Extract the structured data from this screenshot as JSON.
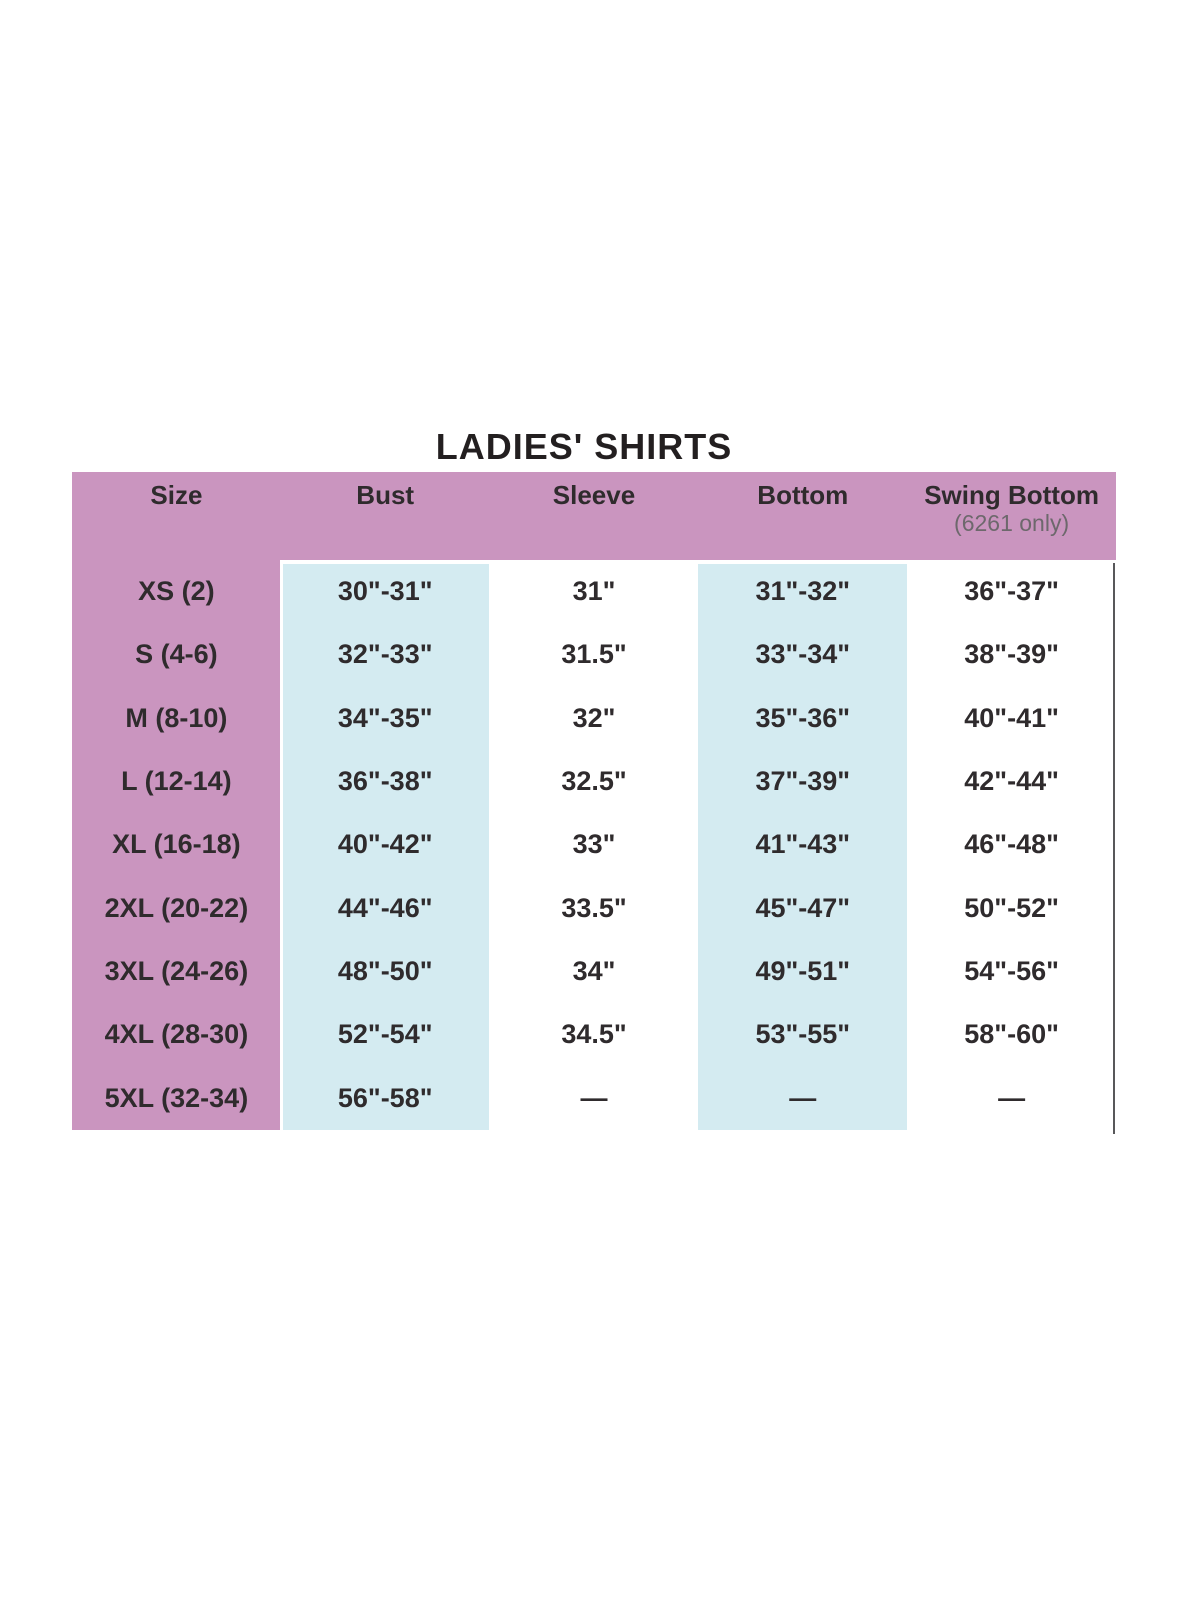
{
  "title": "LADIES' SHIRTS",
  "chart_data": {
    "type": "table",
    "title": "LADIES' SHIRTS",
    "columns": [
      "Size",
      "Bust",
      "Sleeve",
      "Bottom",
      "Swing Bottom"
    ],
    "swing_bottom_note": "(6261 only)",
    "fields": [
      "size",
      "bust",
      "sleeve",
      "bottom",
      "swing_bottom"
    ],
    "rows": [
      {
        "size": "XS (2)",
        "bust": "30\"-31\"",
        "sleeve": "31\"",
        "bottom": "31\"-32\"",
        "swing_bottom": "36\"-37\""
      },
      {
        "size": "S (4-6)",
        "bust": "32\"-33\"",
        "sleeve": "31.5\"",
        "bottom": "33\"-34\"",
        "swing_bottom": "38\"-39\""
      },
      {
        "size": "M (8-10)",
        "bust": "34\"-35\"",
        "sleeve": "32\"",
        "bottom": "35\"-36\"",
        "swing_bottom": "40\"-41\""
      },
      {
        "size": "L (12-14)",
        "bust": "36\"-38\"",
        "sleeve": "32.5\"",
        "bottom": "37\"-39\"",
        "swing_bottom": "42\"-44\""
      },
      {
        "size": "XL (16-18)",
        "bust": "40\"-42\"",
        "sleeve": "33\"",
        "bottom": "41\"-43\"",
        "swing_bottom": "46\"-48\""
      },
      {
        "size": "2XL (20-22)",
        "bust": "44\"-46\"",
        "sleeve": "33.5\"",
        "bottom": "45\"-47\"",
        "swing_bottom": "50\"-52\""
      },
      {
        "size": "3XL (24-26)",
        "bust": "48\"-50\"",
        "sleeve": "34\"",
        "bottom": "49\"-51\"",
        "swing_bottom": "54\"-56\""
      },
      {
        "size": "4XL (28-30)",
        "bust": "52\"-54\"",
        "sleeve": "34.5\"",
        "bottom": "53\"-55\"",
        "swing_bottom": "58\"-60\""
      },
      {
        "size": "5XL (32-34)",
        "bust": "56\"-58\"",
        "sleeve": "—",
        "bottom": "—",
        "swing_bottom": "—"
      }
    ]
  },
  "colors": {
    "header_pink": "#ca95bf",
    "column_blue": "#d4ebf1",
    "title_text": "#231f20",
    "cell_text": "#2f2b2d",
    "note_gray": "#6d686c",
    "border_line": "#58585a"
  }
}
